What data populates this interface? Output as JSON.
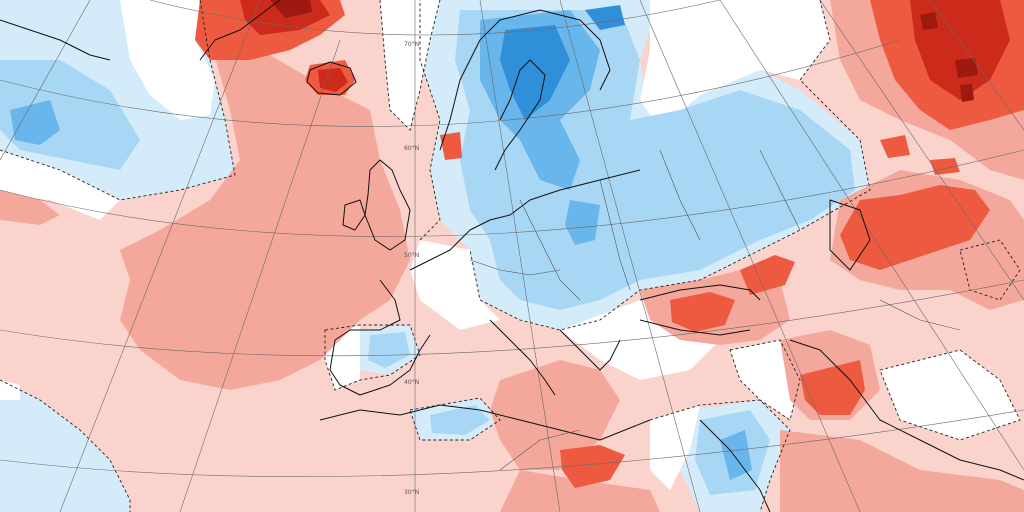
{
  "map": {
    "colors": {
      "background_white": "#ffffff",
      "warm_1": "#fbd3cd",
      "warm_2": "#f4a89c",
      "warm_3": "#ee5a40",
      "warm_4": "#cc2a1a",
      "warm_5": "#9e1a10",
      "cool_1": "#d4ecfa",
      "cool_2": "#a8d6f5",
      "cool_3": "#68b6ec",
      "cool_4": "#2f8fd8",
      "coastline": "#111111",
      "graticule": "#6b6b6b"
    },
    "graticule_labels": {
      "lat_70": "70°N",
      "lat_60": "60°N",
      "lat_50": "50°N",
      "lat_40": "40°N",
      "lat_30": "30°N"
    }
  }
}
